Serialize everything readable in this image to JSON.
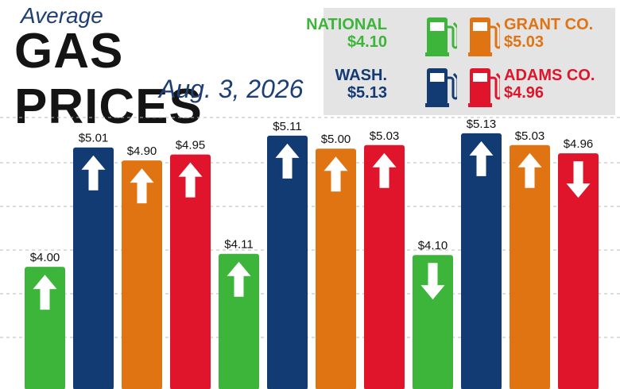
{
  "header": {
    "subtitle": "Average",
    "title": "GAS PRICES",
    "date": "Aug. 3, 2026"
  },
  "legend": [
    {
      "name": "NATIONAL",
      "value": "$4.10",
      "color": "#3db43a",
      "icon": "gas-pump-icon"
    },
    {
      "name": "GRANT CO.",
      "value": "$5.03",
      "color": "#e07413",
      "icon": "gas-pump-icon"
    },
    {
      "name": "WASH.",
      "value": "$5.13",
      "color": "#123a73",
      "icon": "gas-pump-icon"
    },
    {
      "name": "ADAMS CO.",
      "value": "$4.96",
      "color": "#e0142a",
      "icon": "gas-pump-icon"
    }
  ],
  "chart_data": {
    "type": "bar",
    "title": "GAS PRICES",
    "ylim": [
      3.0,
      5.25
    ],
    "grid": true,
    "bars": [
      {
        "label": "$4.00",
        "value": 4.0,
        "color": "#3db43a",
        "trend": "up"
      },
      {
        "label": "$5.01",
        "value": 5.01,
        "color": "#123a73",
        "trend": "up"
      },
      {
        "label": "$4.90",
        "value": 4.9,
        "color": "#e07413",
        "trend": "up"
      },
      {
        "label": "$4.95",
        "value": 4.95,
        "color": "#e0142a",
        "trend": "up"
      },
      {
        "label": "$4.11",
        "value": 4.11,
        "color": "#3db43a",
        "trend": "up"
      },
      {
        "label": "$5.11",
        "value": 5.11,
        "color": "#123a73",
        "trend": "up"
      },
      {
        "label": "$5.00",
        "value": 5.0,
        "color": "#e07413",
        "trend": "up"
      },
      {
        "label": "$5.03",
        "value": 5.03,
        "color": "#e0142a",
        "trend": "up"
      },
      {
        "label": "$4.10",
        "value": 4.1,
        "color": "#3db43a",
        "trend": "down"
      },
      {
        "label": "$5.13",
        "value": 5.13,
        "color": "#123a73",
        "trend": "up"
      },
      {
        "label": "$5.03",
        "value": 5.03,
        "color": "#e07413",
        "trend": "up"
      },
      {
        "label": "$4.96",
        "value": 4.96,
        "color": "#e0142a",
        "trend": "down"
      }
    ]
  }
}
